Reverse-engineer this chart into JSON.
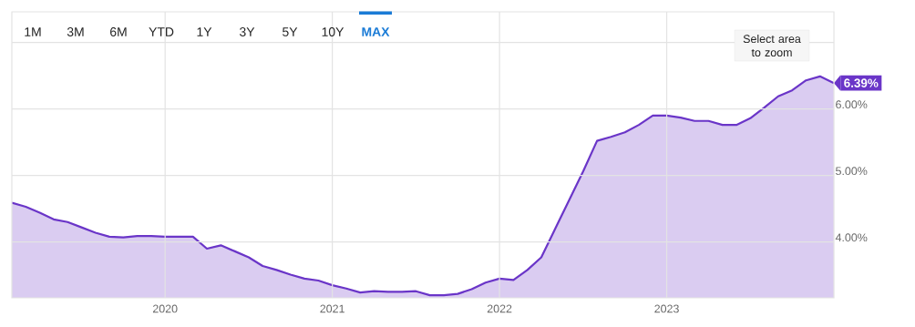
{
  "chart_data": {
    "type": "area",
    "x": [
      "2019-02",
      "2019-03",
      "2019-04",
      "2019-05",
      "2019-06",
      "2019-07",
      "2019-08",
      "2019-09",
      "2019-10",
      "2019-11",
      "2019-12",
      "2020-01",
      "2020-02",
      "2020-03",
      "2020-04",
      "2020-05",
      "2020-06",
      "2020-07",
      "2020-08",
      "2020-09",
      "2020-10",
      "2020-11",
      "2020-12",
      "2021-01",
      "2021-02",
      "2021-03",
      "2021-04",
      "2021-05",
      "2021-06",
      "2021-07",
      "2021-08",
      "2021-09",
      "2021-10",
      "2021-11",
      "2021-12",
      "2022-01",
      "2022-02",
      "2022-03",
      "2022-04",
      "2022-05",
      "2022-06",
      "2022-07",
      "2022-08",
      "2022-09",
      "2022-10",
      "2022-11",
      "2022-12",
      "2023-01",
      "2023-02",
      "2023-03",
      "2023-04",
      "2023-05",
      "2023-06",
      "2023-07",
      "2023-08",
      "2023-09",
      "2023-10",
      "2023-11",
      "2023-12",
      "2024-01"
    ],
    "values": [
      4.59,
      4.53,
      4.44,
      4.34,
      4.3,
      4.22,
      4.14,
      4.08,
      4.07,
      4.09,
      4.09,
      4.08,
      4.08,
      4.08,
      3.9,
      3.95,
      3.86,
      3.77,
      3.64,
      3.58,
      3.51,
      3.45,
      3.42,
      3.35,
      3.3,
      3.24,
      3.26,
      3.25,
      3.25,
      3.26,
      3.2,
      3.2,
      3.22,
      3.29,
      3.39,
      3.45,
      3.43,
      3.58,
      3.77,
      4.2,
      4.63,
      5.06,
      5.52,
      5.58,
      5.65,
      5.76,
      5.9,
      5.9,
      5.87,
      5.82,
      5.82,
      5.76,
      5.76,
      5.86,
      6.02,
      6.19,
      6.28,
      6.43,
      6.49,
      6.39
    ],
    "color": "#6a35c8",
    "xlim": [
      "2019-02",
      "2024-01"
    ],
    "xticks": [
      "2020",
      "2021",
      "2022",
      "2023"
    ],
    "ylim": [
      3.16,
      7.46
    ],
    "yticks": [
      {
        "value": 4,
        "label": "4.00%"
      },
      {
        "value": 5,
        "label": "5.00%"
      },
      {
        "value": 6,
        "label": "6.00%"
      },
      {
        "value": 7,
        "label": null
      }
    ],
    "grid": true,
    "annotations": [
      "1M",
      "3M",
      "6M",
      "YTD",
      "1Y",
      "3Y",
      "5Y",
      "10Y",
      "MAX",
      "Select area to zoom",
      {
        "text": "6.39%",
        "x": "2024-01",
        "y": 6.39
      }
    ]
  }
}
